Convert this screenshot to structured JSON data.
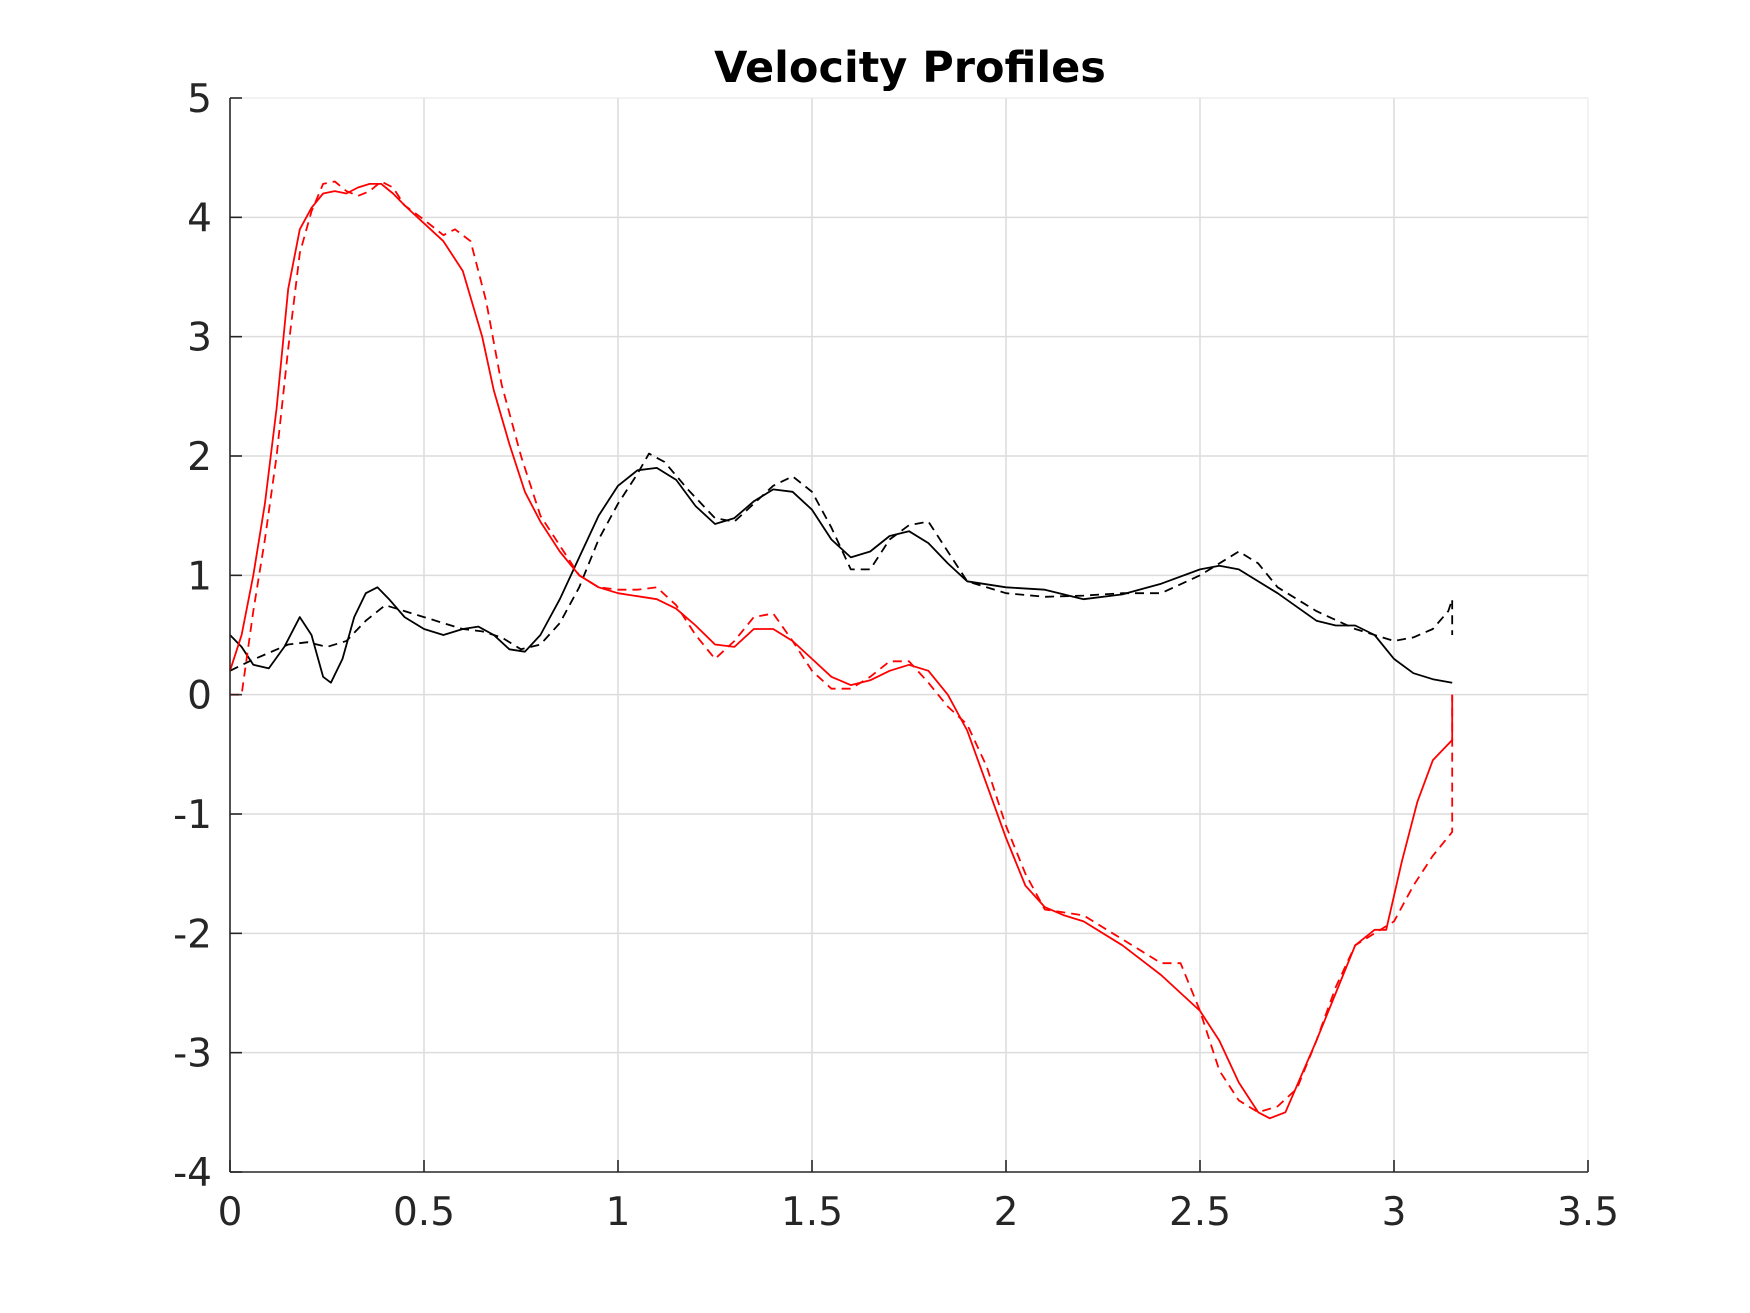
{
  "chart_data": {
    "type": "line",
    "title": "Velocity Profiles",
    "xlabel": "",
    "ylabel": "",
    "xlim": [
      0,
      3.5
    ],
    "ylim": [
      -4,
      5
    ],
    "xticks": [
      0,
      0.5,
      1,
      1.5,
      2,
      2.5,
      3,
      3.5
    ],
    "xtick_labels": [
      "0",
      "0.5",
      "1",
      "1.5",
      "2",
      "2.5",
      "3",
      "3.5"
    ],
    "yticks": [
      -4,
      -3,
      -2,
      -1,
      0,
      1,
      2,
      3,
      4,
      5
    ],
    "ytick_labels": [
      "-4",
      "-3",
      "-2",
      "-1",
      "0",
      "1",
      "2",
      "3",
      "4",
      "5"
    ],
    "grid": true,
    "legend": "none",
    "series": [
      {
        "color": "#000000",
        "dash": "solid",
        "x": [
          0,
          0.03,
          0.06,
          0.1,
          0.14,
          0.18,
          0.21,
          0.24,
          0.26,
          0.29,
          0.32,
          0.35,
          0.38,
          0.41,
          0.45,
          0.5,
          0.55,
          0.6,
          0.64,
          0.68,
          0.72,
          0.76,
          0.8,
          0.85,
          0.9,
          0.95,
          1,
          1.05,
          1.1,
          1.15,
          1.2,
          1.25,
          1.3,
          1.35,
          1.4,
          1.45,
          1.5,
          1.55,
          1.6,
          1.65,
          1.7,
          1.75,
          1.8,
          1.85,
          1.9,
          2,
          2.1,
          2.2,
          2.3,
          2.4,
          2.5,
          2.55,
          2.6,
          2.7,
          2.8,
          2.85,
          2.9,
          2.95,
          3,
          3.05,
          3.1,
          3.15
        ],
        "y": [
          0.5,
          0.4,
          0.25,
          0.22,
          0.4,
          0.65,
          0.5,
          0.15,
          0.1,
          0.3,
          0.65,
          0.85,
          0.9,
          0.8,
          0.65,
          0.55,
          0.5,
          0.55,
          0.57,
          0.5,
          0.38,
          0.36,
          0.5,
          0.8,
          1.15,
          1.5,
          1.75,
          1.88,
          1.9,
          1.8,
          1.58,
          1.43,
          1.48,
          1.62,
          1.72,
          1.7,
          1.55,
          1.3,
          1.15,
          1.2,
          1.33,
          1.37,
          1.27,
          1.1,
          0.95,
          0.9,
          0.88,
          0.8,
          0.84,
          0.93,
          1.05,
          1.08,
          1.05,
          0.85,
          0.62,
          0.58,
          0.58,
          0.5,
          0.3,
          0.18,
          0.13,
          0.1
        ]
      },
      {
        "color": "#000000",
        "dash": "dashed",
        "x": [
          0,
          0.05,
          0.1,
          0.15,
          0.2,
          0.25,
          0.3,
          0.35,
          0.4,
          0.45,
          0.5,
          0.55,
          0.6,
          0.65,
          0.7,
          0.75,
          0.8,
          0.85,
          0.9,
          0.95,
          1,
          1.05,
          1.08,
          1.12,
          1.18,
          1.25,
          1.3,
          1.35,
          1.4,
          1.45,
          1.5,
          1.55,
          1.6,
          1.65,
          1.7,
          1.75,
          1.8,
          1.85,
          1.9,
          2,
          2.1,
          2.2,
          2.3,
          2.4,
          2.5,
          2.6,
          2.65,
          2.7,
          2.8,
          2.9,
          3,
          3.05,
          3.1,
          3.14,
          3.15,
          3.15
        ],
        "y": [
          0.2,
          0.28,
          0.35,
          0.42,
          0.44,
          0.4,
          0.45,
          0.62,
          0.75,
          0.7,
          0.65,
          0.6,
          0.55,
          0.53,
          0.48,
          0.38,
          0.42,
          0.6,
          0.9,
          1.3,
          1.6,
          1.85,
          2.02,
          1.95,
          1.72,
          1.48,
          1.45,
          1.6,
          1.75,
          1.83,
          1.7,
          1.4,
          1.05,
          1.05,
          1.3,
          1.42,
          1.45,
          1.2,
          0.95,
          0.85,
          0.82,
          0.83,
          0.85,
          0.85,
          1.0,
          1.2,
          1.1,
          0.9,
          0.7,
          0.55,
          0.45,
          0.48,
          0.55,
          0.7,
          0.8,
          0.5
        ]
      },
      {
        "color": "#ff0000",
        "dash": "solid",
        "x": [
          0,
          0.03,
          0.06,
          0.09,
          0.12,
          0.15,
          0.18,
          0.21,
          0.24,
          0.27,
          0.3,
          0.33,
          0.36,
          0.39,
          0.42,
          0.45,
          0.5,
          0.55,
          0.6,
          0.65,
          0.68,
          0.72,
          0.76,
          0.8,
          0.85,
          0.9,
          0.95,
          1,
          1.1,
          1.15,
          1.2,
          1.25,
          1.3,
          1.35,
          1.4,
          1.45,
          1.5,
          1.55,
          1.6,
          1.65,
          1.7,
          1.75,
          1.8,
          1.85,
          1.9,
          1.95,
          2,
          2.05,
          2.1,
          2.15,
          2.2,
          2.3,
          2.4,
          2.5,
          2.55,
          2.6,
          2.65,
          2.68,
          2.72,
          2.76,
          2.8,
          2.85,
          2.9,
          2.95,
          2.98,
          3.02,
          3.06,
          3.1,
          3.15,
          3.15
        ],
        "y": [
          0.2,
          0.5,
          1.0,
          1.6,
          2.4,
          3.4,
          3.9,
          4.08,
          4.2,
          4.22,
          4.2,
          4.25,
          4.28,
          4.28,
          4.2,
          4.1,
          3.95,
          3.8,
          3.55,
          3.0,
          2.55,
          2.1,
          1.7,
          1.45,
          1.2,
          1.0,
          0.9,
          0.85,
          0.8,
          0.72,
          0.58,
          0.42,
          0.4,
          0.55,
          0.55,
          0.45,
          0.3,
          0.15,
          0.08,
          0.12,
          0.2,
          0.25,
          0.2,
          0.0,
          -0.3,
          -0.75,
          -1.2,
          -1.6,
          -1.78,
          -1.85,
          -1.9,
          -2.1,
          -2.35,
          -2.65,
          -2.9,
          -3.25,
          -3.5,
          -3.55,
          -3.5,
          -3.2,
          -2.9,
          -2.5,
          -2.1,
          -1.97,
          -1.97,
          -1.4,
          -0.9,
          -0.55,
          -0.38,
          0.0
        ]
      },
      {
        "color": "#ff0000",
        "dash": "dashed",
        "x": [
          0,
          0.03,
          0.06,
          0.09,
          0.12,
          0.15,
          0.18,
          0.21,
          0.24,
          0.27,
          0.3,
          0.33,
          0.36,
          0.39,
          0.42,
          0.45,
          0.5,
          0.55,
          0.58,
          0.62,
          0.66,
          0.7,
          0.75,
          0.8,
          0.85,
          0.9,
          0.95,
          1,
          1.05,
          1.1,
          1.15,
          1.2,
          1.25,
          1.3,
          1.35,
          1.4,
          1.45,
          1.5,
          1.55,
          1.6,
          1.65,
          1.7,
          1.75,
          1.8,
          1.85,
          1.9,
          1.95,
          2,
          2.05,
          2.1,
          2.2,
          2.25,
          2.3,
          2.35,
          2.4,
          2.45,
          2.5,
          2.55,
          2.6,
          2.65,
          2.7,
          2.75,
          2.8,
          2.85,
          2.9,
          2.95,
          3,
          3.05,
          3.1,
          3.15,
          3.15
        ],
        "y": [
          0.0,
          0.0,
          0.7,
          1.3,
          2.0,
          2.9,
          3.7,
          4.05,
          4.28,
          4.3,
          4.22,
          4.18,
          4.22,
          4.3,
          4.25,
          4.1,
          3.98,
          3.85,
          3.9,
          3.8,
          3.3,
          2.6,
          2.0,
          1.5,
          1.25,
          1.0,
          0.9,
          0.88,
          0.88,
          0.9,
          0.75,
          0.5,
          0.3,
          0.45,
          0.65,
          0.68,
          0.45,
          0.2,
          0.05,
          0.05,
          0.15,
          0.28,
          0.28,
          0.1,
          -0.1,
          -0.25,
          -0.6,
          -1.1,
          -1.5,
          -1.8,
          -1.85,
          -1.95,
          -2.05,
          -2.15,
          -2.25,
          -2.25,
          -2.65,
          -3.15,
          -3.4,
          -3.5,
          -3.45,
          -3.3,
          -2.9,
          -2.45,
          -2.1,
          -2.0,
          -1.9,
          -1.6,
          -1.35,
          -1.15,
          0.0
        ]
      }
    ]
  }
}
